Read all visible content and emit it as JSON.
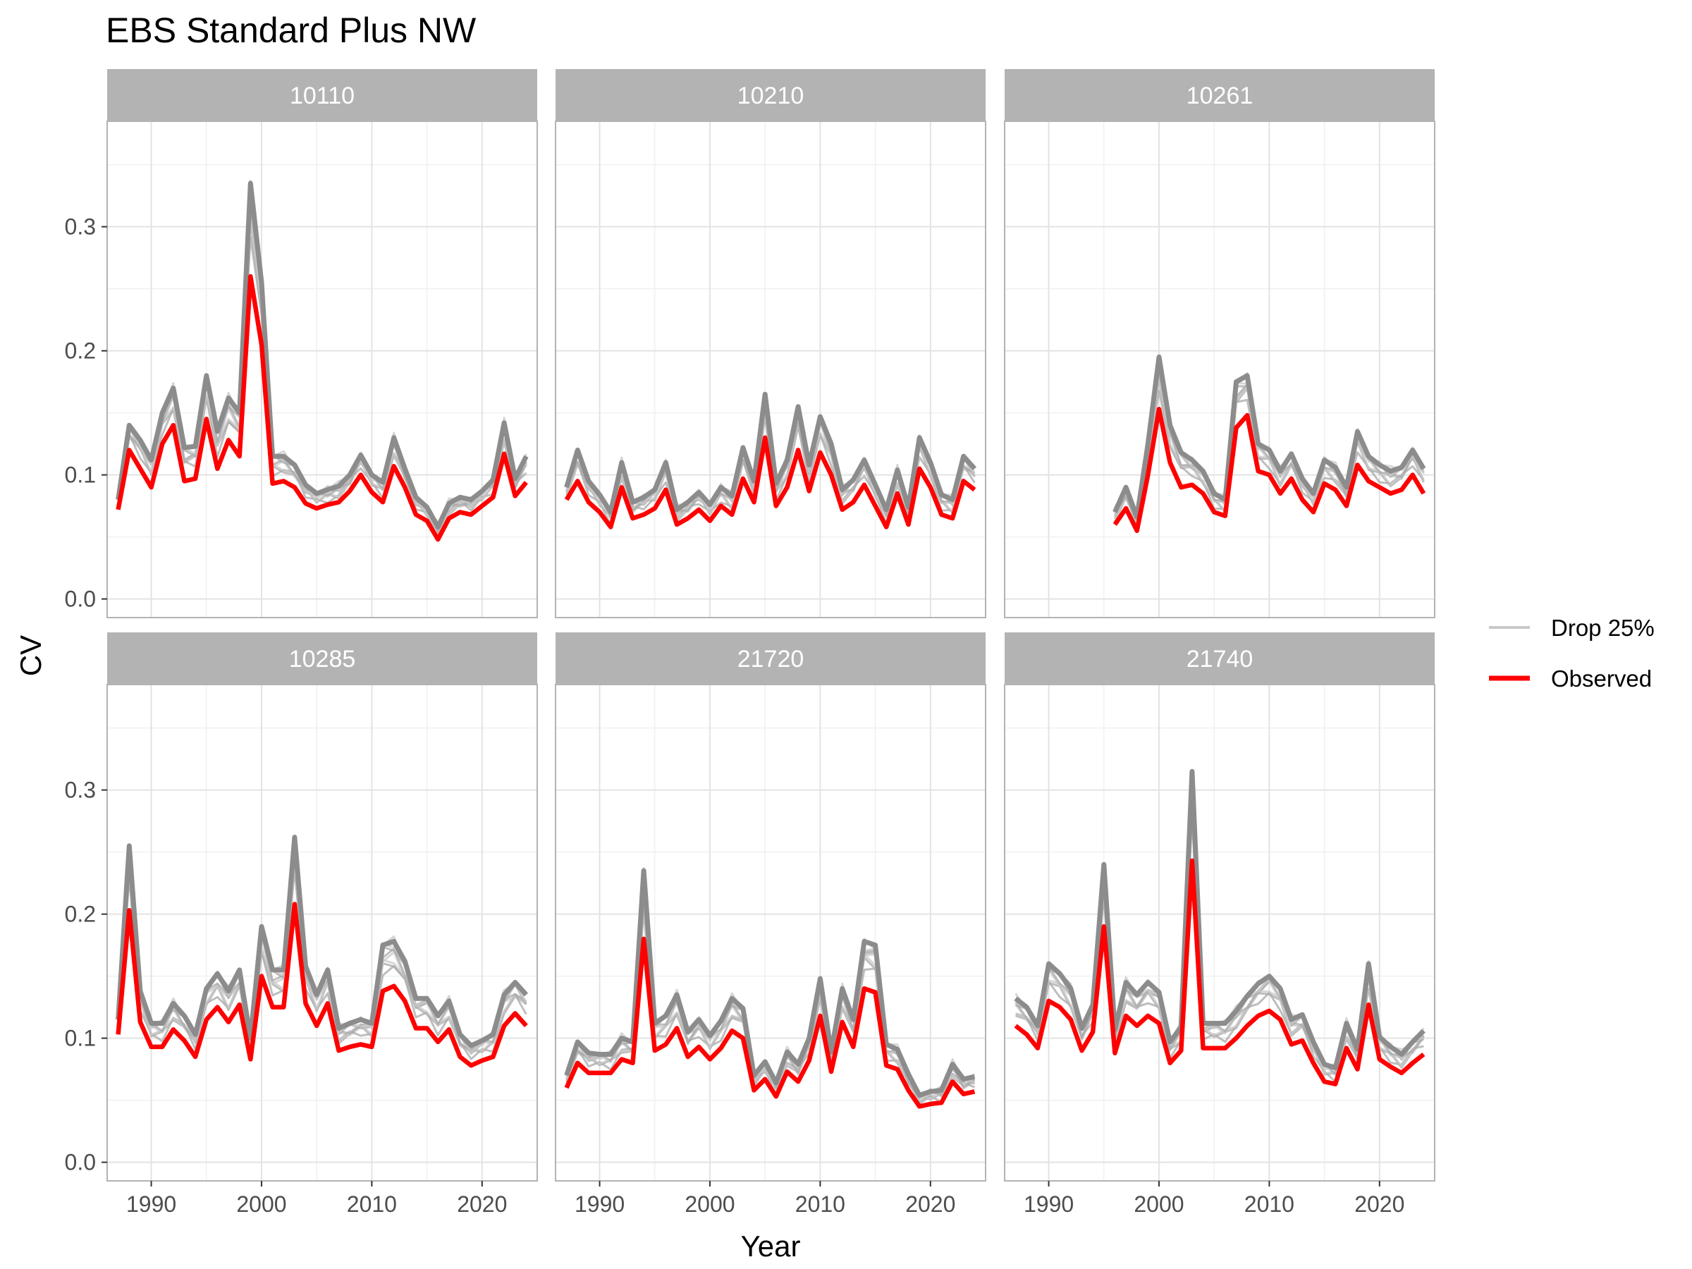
{
  "chart_data": {
    "type": "line",
    "title": "EBS Standard Plus NW",
    "xlabel": "Year",
    "ylabel": "CV",
    "xlim": [
      1986,
      2025
    ],
    "ylim": [
      -0.015,
      0.385
    ],
    "x_ticks": [
      1990,
      2000,
      2010,
      2020
    ],
    "x_tick_labels": [
      "1990",
      "2000",
      "2010",
      "2020"
    ],
    "y_ticks": [
      0.0,
      0.1,
      0.2,
      0.3
    ],
    "y_tick_labels": [
      "0.0",
      "0.1",
      "0.2",
      "0.3"
    ],
    "grid": true,
    "legend": {
      "position": "right",
      "entries": [
        {
          "label": "Drop 25%",
          "color": "#c8c8c8"
        },
        {
          "label": "Observed",
          "color": "#ff0000"
        }
      ]
    },
    "colors": {
      "observed": "#ff0000",
      "drop_band": "#8c8c8c",
      "drop_light": "#c8c8c8",
      "strip": "#b3b3b3"
    },
    "panels": [
      {
        "label": "10110",
        "series": [
          {
            "name": "Observed",
            "x": [
              1987,
              1988,
              1989,
              1990,
              1991,
              1992,
              1993,
              1994,
              1995,
              1996,
              1997,
              1998,
              1999,
              2000,
              2001,
              2002,
              2003,
              2004,
              2005,
              2006,
              2007,
              2008,
              2009,
              2010,
              2011,
              2012,
              2013,
              2014,
              2015,
              2016,
              2017,
              2018,
              2019,
              2020,
              2021,
              2022,
              2023,
              2024
            ],
            "y": [
              0.072,
              0.12,
              0.105,
              0.09,
              0.125,
              0.14,
              0.095,
              0.097,
              0.145,
              0.105,
              0.128,
              0.115,
              0.26,
              0.205,
              0.093,
              0.095,
              0.09,
              0.077,
              0.073,
              0.076,
              0.078,
              0.087,
              0.1,
              0.086,
              0.078,
              0.107,
              0.09,
              0.068,
              0.063,
              0.048,
              0.065,
              0.07,
              0.068,
              0.075,
              0.082,
              0.117,
              0.083,
              0.094
            ]
          },
          {
            "name": "Drop 25%",
            "band_upper": [
              0.08,
              0.14,
              0.128,
              0.112,
              0.15,
              0.17,
              0.122,
              0.123,
              0.18,
              0.135,
              0.162,
              0.15,
              0.335,
              0.255,
              0.115,
              0.115,
              0.108,
              0.092,
              0.085,
              0.088,
              0.091,
              0.1,
              0.116,
              0.1,
              0.094,
              0.13,
              0.105,
              0.082,
              0.074,
              0.058,
              0.077,
              0.082,
              0.08,
              0.087,
              0.096,
              0.142,
              0.097,
              0.115
            ]
          }
        ]
      },
      {
        "label": "10210",
        "series": [
          {
            "name": "Observed",
            "x": [
              1987,
              1988,
              1989,
              1990,
              1991,
              1992,
              1993,
              1994,
              1995,
              1996,
              1997,
              1998,
              1999,
              2000,
              2001,
              2002,
              2003,
              2004,
              2005,
              2006,
              2007,
              2008,
              2009,
              2010,
              2011,
              2012,
              2013,
              2014,
              2015,
              2016,
              2017,
              2018,
              2019,
              2020,
              2021,
              2022,
              2023,
              2024
            ],
            "y": [
              0.08,
              0.095,
              0.078,
              0.07,
              0.058,
              0.09,
              0.065,
              0.068,
              0.073,
              0.088,
              0.06,
              0.065,
              0.072,
              0.063,
              0.075,
              0.068,
              0.097,
              0.078,
              0.13,
              0.075,
              0.09,
              0.12,
              0.087,
              0.118,
              0.1,
              0.072,
              0.078,
              0.092,
              0.075,
              0.058,
              0.085,
              0.06,
              0.105,
              0.09,
              0.068,
              0.065,
              0.095,
              0.088
            ]
          },
          {
            "name": "Drop 25%",
            "band_upper": [
              0.09,
              0.12,
              0.095,
              0.084,
              0.07,
              0.11,
              0.078,
              0.082,
              0.088,
              0.11,
              0.072,
              0.078,
              0.086,
              0.076,
              0.09,
              0.083,
              0.122,
              0.095,
              0.165,
              0.093,
              0.112,
              0.155,
              0.108,
              0.147,
              0.125,
              0.088,
              0.096,
              0.112,
              0.092,
              0.072,
              0.104,
              0.074,
              0.13,
              0.11,
              0.084,
              0.08,
              0.115,
              0.105
            ]
          }
        ]
      },
      {
        "label": "10261",
        "series": [
          {
            "name": "Observed",
            "x": [
              1996,
              1997,
              1998,
              1999,
              2000,
              2001,
              2002,
              2003,
              2004,
              2005,
              2006,
              2007,
              2008,
              2009,
              2010,
              2011,
              2012,
              2013,
              2014,
              2015,
              2016,
              2017,
              2018,
              2019,
              2020,
              2021,
              2022,
              2023,
              2024
            ],
            "y": [
              0.06,
              0.073,
              0.055,
              0.1,
              0.153,
              0.11,
              0.09,
              0.092,
              0.085,
              0.07,
              0.067,
              0.138,
              0.148,
              0.103,
              0.1,
              0.085,
              0.097,
              0.08,
              0.07,
              0.093,
              0.088,
              0.075,
              0.108,
              0.095,
              0.09,
              0.085,
              0.088,
              0.1,
              0.085
            ]
          },
          {
            "name": "Drop 25%",
            "band_upper": [
              0.07,
              0.09,
              0.066,
              0.125,
              0.195,
              0.14,
              0.118,
              0.112,
              0.103,
              0.085,
              0.08,
              0.175,
              0.18,
              0.125,
              0.12,
              0.103,
              0.117,
              0.097,
              0.085,
              0.112,
              0.106,
              0.09,
              0.135,
              0.115,
              0.108,
              0.103,
              0.106,
              0.12,
              0.105
            ]
          }
        ]
      },
      {
        "label": "10285",
        "series": [
          {
            "name": "Observed",
            "x": [
              1987,
              1988,
              1989,
              1990,
              1991,
              1992,
              1993,
              1994,
              1995,
              1996,
              1997,
              1998,
              1999,
              2000,
              2001,
              2002,
              2003,
              2004,
              2005,
              2006,
              2007,
              2008,
              2009,
              2010,
              2011,
              2012,
              2013,
              2014,
              2015,
              2016,
              2017,
              2018,
              2019,
              2020,
              2021,
              2022,
              2023,
              2024
            ],
            "y": [
              0.103,
              0.203,
              0.113,
              0.093,
              0.093,
              0.107,
              0.098,
              0.085,
              0.115,
              0.125,
              0.113,
              0.127,
              0.083,
              0.15,
              0.125,
              0.125,
              0.208,
              0.128,
              0.11,
              0.128,
              0.09,
              0.093,
              0.095,
              0.093,
              0.138,
              0.142,
              0.13,
              0.108,
              0.108,
              0.097,
              0.107,
              0.085,
              0.078,
              0.082,
              0.085,
              0.11,
              0.12,
              0.11
            ]
          },
          {
            "name": "Drop 25%",
            "band_upper": [
              0.115,
              0.255,
              0.138,
              0.112,
              0.112,
              0.128,
              0.118,
              0.103,
              0.14,
              0.152,
              0.138,
              0.155,
              0.1,
              0.19,
              0.155,
              0.155,
              0.262,
              0.158,
              0.135,
              0.155,
              0.108,
              0.112,
              0.115,
              0.112,
              0.175,
              0.178,
              0.162,
              0.132,
              0.132,
              0.118,
              0.13,
              0.103,
              0.094,
              0.098,
              0.103,
              0.135,
              0.145,
              0.135
            ]
          }
        ]
      },
      {
        "label": "21720",
        "series": [
          {
            "name": "Observed",
            "x": [
              1987,
              1988,
              1989,
              1990,
              1991,
              1992,
              1993,
              1994,
              1995,
              1996,
              1997,
              1998,
              1999,
              2000,
              2001,
              2002,
              2003,
              2004,
              2005,
              2006,
              2007,
              2008,
              2009,
              2010,
              2011,
              2012,
              2013,
              2014,
              2015,
              2016,
              2017,
              2018,
              2019,
              2020,
              2021,
              2022,
              2023,
              2024
            ],
            "y": [
              0.06,
              0.08,
              0.072,
              0.072,
              0.072,
              0.083,
              0.08,
              0.18,
              0.09,
              0.095,
              0.108,
              0.085,
              0.093,
              0.083,
              0.092,
              0.106,
              0.1,
              0.058,
              0.067,
              0.053,
              0.073,
              0.065,
              0.082,
              0.118,
              0.073,
              0.113,
              0.093,
              0.14,
              0.137,
              0.078,
              0.075,
              0.058,
              0.045,
              0.047,
              0.048,
              0.065,
              0.055,
              0.057
            ]
          },
          {
            "name": "Drop 25%",
            "band_upper": [
              0.07,
              0.097,
              0.088,
              0.087,
              0.087,
              0.1,
              0.097,
              0.235,
              0.112,
              0.118,
              0.135,
              0.105,
              0.115,
              0.102,
              0.114,
              0.132,
              0.124,
              0.07,
              0.081,
              0.064,
              0.089,
              0.079,
              0.1,
              0.148,
              0.089,
              0.14,
              0.115,
              0.178,
              0.175,
              0.095,
              0.091,
              0.071,
              0.054,
              0.057,
              0.058,
              0.079,
              0.067,
              0.069
            ]
          }
        ]
      },
      {
        "label": "21740",
        "series": [
          {
            "name": "Observed",
            "x": [
              1987,
              1988,
              1989,
              1990,
              1991,
              1992,
              1993,
              1994,
              1995,
              1996,
              1997,
              1998,
              1999,
              2000,
              2001,
              2002,
              2003,
              2004,
              2005,
              2006,
              2007,
              2008,
              2009,
              2010,
              2011,
              2012,
              2013,
              2014,
              2015,
              2016,
              2017,
              2018,
              2019,
              2020,
              2021,
              2022,
              2023,
              2024
            ],
            "y": [
              0.11,
              0.103,
              0.092,
              0.13,
              0.125,
              0.115,
              0.09,
              0.105,
              0.19,
              0.088,
              0.118,
              0.11,
              0.118,
              0.112,
              0.08,
              0.09,
              0.243,
              0.092,
              0.092,
              0.092,
              0.1,
              0.11,
              0.118,
              0.122,
              0.115,
              0.095,
              0.098,
              0.08,
              0.065,
              0.063,
              0.092,
              0.075,
              0.127,
              0.083,
              0.077,
              0.072,
              0.08,
              0.087
            ]
          },
          {
            "name": "Drop 25%",
            "band_upper": [
              0.132,
              0.125,
              0.11,
              0.16,
              0.152,
              0.14,
              0.108,
              0.127,
              0.24,
              0.107,
              0.145,
              0.135,
              0.145,
              0.137,
              0.097,
              0.109,
              0.315,
              0.112,
              0.112,
              0.112,
              0.122,
              0.134,
              0.144,
              0.15,
              0.14,
              0.115,
              0.119,
              0.097,
              0.079,
              0.076,
              0.112,
              0.091,
              0.16,
              0.101,
              0.093,
              0.087,
              0.097,
              0.106
            ]
          }
        ]
      }
    ]
  }
}
